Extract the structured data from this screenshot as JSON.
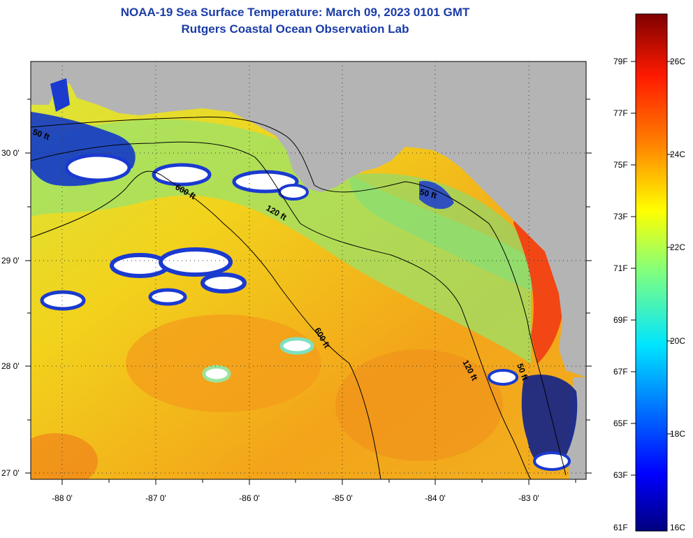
{
  "title": "NOAA-19 Sea Surface Temperature:  March 09, 2023 0101 GMT",
  "subtitle": "Rutgers Coastal Ocean Observation Lab",
  "lon_labels": [
    "-88 0'",
    "-87 0'",
    "-86 0'",
    "-85 0'",
    "-84 0'",
    "-83 0'"
  ],
  "lat_labels": [
    "30 0'",
    "29 0'",
    "28 0'",
    "27 0'"
  ],
  "contour_labels": [
    "50 ft",
    "600 ft",
    "120 ft",
    "50 ft",
    "600 ft",
    "120 ft",
    "50 ft"
  ],
  "colorbar": {
    "f_labels": [
      "79F",
      "77F",
      "75F",
      "73F",
      "71F",
      "69F",
      "67F",
      "65F",
      "63F",
      "61F"
    ],
    "c_labels": [
      "26C",
      "24C",
      "22C",
      "20C",
      "18C",
      "16C"
    ]
  },
  "colors": {
    "land": "#b4b4b4",
    "cloud": "#ffffff",
    "title": "#1a3ca8"
  }
}
